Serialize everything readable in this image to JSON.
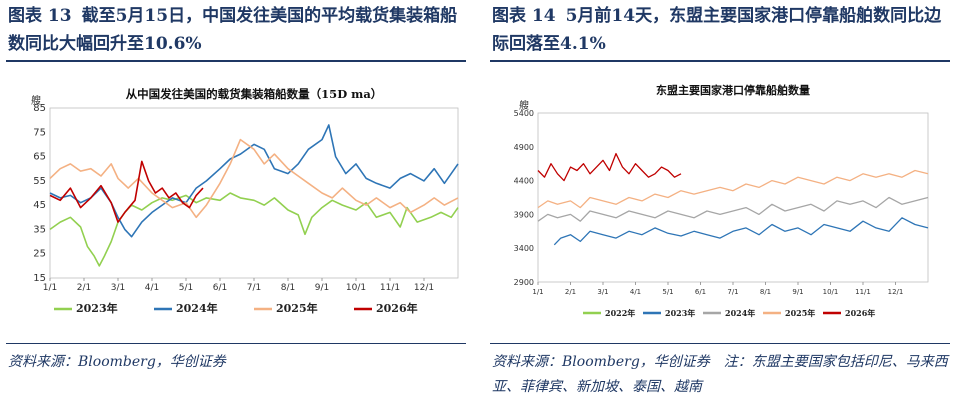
{
  "left": {
    "fig_label": "图表 13",
    "fig_title": "截至5月15日，中国发往美国的平均载货集装箱船数同比大幅回升至10.6%",
    "source": "资料来源：Bloomberg，华创证券",
    "chart_data": {
      "type": "line",
      "title": "从中国发往美国的载货集装箱船数量（15D ma）",
      "ylabel": "艘",
      "ylim": [
        15,
        85
      ],
      "yticks": [
        15,
        25,
        35,
        45,
        55,
        65,
        75,
        85
      ],
      "xticks": [
        "1/1",
        "2/1",
        "3/1",
        "4/1",
        "5/1",
        "6/1",
        "7/1",
        "8/1",
        "9/1",
        "10/1",
        "11/1",
        "12/1"
      ],
      "legend_position": "bottom",
      "series": [
        {
          "name": "2023年",
          "color": "#92d050",
          "points": [
            [
              0,
              35
            ],
            [
              0.3,
              38
            ],
            [
              0.6,
              40
            ],
            [
              0.9,
              36
            ],
            [
              1.1,
              28
            ],
            [
              1.3,
              24
            ],
            [
              1.45,
              20
            ],
            [
              1.6,
              24
            ],
            [
              1.8,
              30
            ],
            [
              2.0,
              38
            ],
            [
              2.2,
              42
            ],
            [
              2.4,
              45
            ],
            [
              2.7,
              43
            ],
            [
              3.0,
              46
            ],
            [
              3.3,
              48
            ],
            [
              3.6,
              47
            ],
            [
              4.0,
              49
            ],
            [
              4.3,
              46
            ],
            [
              4.6,
              48
            ],
            [
              5.0,
              47
            ],
            [
              5.3,
              50
            ],
            [
              5.6,
              48
            ],
            [
              6.0,
              47
            ],
            [
              6.3,
              45
            ],
            [
              6.6,
              48
            ],
            [
              7.0,
              43
            ],
            [
              7.3,
              41
            ],
            [
              7.5,
              33
            ],
            [
              7.7,
              40
            ],
            [
              8.0,
              44
            ],
            [
              8.3,
              47
            ],
            [
              8.6,
              45
            ],
            [
              9.0,
              43
            ],
            [
              9.3,
              46
            ],
            [
              9.6,
              40
            ],
            [
              10.0,
              42
            ],
            [
              10.3,
              36
            ],
            [
              10.5,
              44
            ],
            [
              10.8,
              38
            ],
            [
              11.2,
              40
            ],
            [
              11.5,
              42
            ],
            [
              11.8,
              40
            ],
            [
              12.0,
              44
            ]
          ]
        },
        {
          "name": "2024年",
          "color": "#2e75b6",
          "points": [
            [
              0,
              50
            ],
            [
              0.3,
              48
            ],
            [
              0.6,
              49
            ],
            [
              0.9,
              46
            ],
            [
              1.2,
              48
            ],
            [
              1.5,
              52
            ],
            [
              1.8,
              46
            ],
            [
              2.0,
              40
            ],
            [
              2.2,
              35
            ],
            [
              2.4,
              32
            ],
            [
              2.7,
              38
            ],
            [
              3.0,
              42
            ],
            [
              3.3,
              45
            ],
            [
              3.6,
              48
            ],
            [
              4.0,
              46
            ],
            [
              4.3,
              52
            ],
            [
              4.6,
              55
            ],
            [
              5.0,
              60
            ],
            [
              5.3,
              64
            ],
            [
              5.6,
              66
            ],
            [
              6.0,
              70
            ],
            [
              6.3,
              68
            ],
            [
              6.6,
              60
            ],
            [
              7.0,
              58
            ],
            [
              7.3,
              62
            ],
            [
              7.6,
              68
            ],
            [
              8.0,
              72
            ],
            [
              8.2,
              78
            ],
            [
              8.4,
              65
            ],
            [
              8.7,
              58
            ],
            [
              9.0,
              62
            ],
            [
              9.3,
              56
            ],
            [
              9.6,
              54
            ],
            [
              10.0,
              52
            ],
            [
              10.3,
              56
            ],
            [
              10.6,
              58
            ],
            [
              11.0,
              55
            ],
            [
              11.3,
              60
            ],
            [
              11.6,
              54
            ],
            [
              12.0,
              62
            ]
          ]
        },
        {
          "name": "2025年",
          "color": "#f4b183",
          "points": [
            [
              0,
              56
            ],
            [
              0.3,
              60
            ],
            [
              0.6,
              62
            ],
            [
              0.9,
              59
            ],
            [
              1.2,
              60
            ],
            [
              1.5,
              57
            ],
            [
              1.8,
              62
            ],
            [
              2.0,
              56
            ],
            [
              2.3,
              52
            ],
            [
              2.6,
              56
            ],
            [
              3.0,
              50
            ],
            [
              3.3,
              47
            ],
            [
              3.6,
              44
            ],
            [
              4.0,
              46
            ],
            [
              4.3,
              40
            ],
            [
              4.6,
              45
            ],
            [
              5.0,
              54
            ],
            [
              5.3,
              62
            ],
            [
              5.6,
              72
            ],
            [
              6.0,
              68
            ],
            [
              6.3,
              62
            ],
            [
              6.6,
              66
            ],
            [
              7.0,
              60
            ],
            [
              7.3,
              57
            ],
            [
              7.6,
              54
            ],
            [
              8.0,
              50
            ],
            [
              8.3,
              48
            ],
            [
              8.6,
              52
            ],
            [
              9.0,
              47
            ],
            [
              9.3,
              45
            ],
            [
              9.6,
              48
            ],
            [
              10.0,
              44
            ],
            [
              10.3,
              46
            ],
            [
              10.6,
              42
            ],
            [
              11.0,
              45
            ],
            [
              11.3,
              48
            ],
            [
              11.6,
              45
            ],
            [
              12.0,
              48
            ]
          ]
        },
        {
          "name": "2026年",
          "color": "#c00000",
          "points": [
            [
              0,
              49
            ],
            [
              0.3,
              47
            ],
            [
              0.6,
              52
            ],
            [
              0.9,
              44
            ],
            [
              1.2,
              48
            ],
            [
              1.5,
              53
            ],
            [
              1.8,
              46
            ],
            [
              2.0,
              38
            ],
            [
              2.2,
              42
            ],
            [
              2.5,
              47
            ],
            [
              2.7,
              63
            ],
            [
              2.9,
              55
            ],
            [
              3.1,
              50
            ],
            [
              3.3,
              52
            ],
            [
              3.5,
              48
            ],
            [
              3.7,
              50
            ],
            [
              3.9,
              46
            ],
            [
              4.1,
              44
            ],
            [
              4.3,
              49
            ],
            [
              4.5,
              52
            ]
          ]
        }
      ]
    }
  },
  "right": {
    "fig_label": "图表 14",
    "fig_title": "5月前14天，东盟主要国家港口停靠船舶数同比边际回落至4.1%",
    "source": "资料来源：Bloomberg，华创证券　注：东盟主要国家包括印尼、马来西亚、菲律宾、新加坡、泰国、越南",
    "chart_data": {
      "type": "line",
      "title": "东盟主要国家港口停靠船舶数量",
      "ylabel": "艘",
      "ylim": [
        2900,
        5400
      ],
      "yticks": [
        2900,
        3400,
        3900,
        4400,
        4900,
        5400
      ],
      "xticks": [
        "1/1",
        "2/1",
        "3/1",
        "4/1",
        "5/1",
        "6/1",
        "7/1",
        "8/1",
        "9/1",
        "10/1",
        "11/1",
        "12/1"
      ],
      "legend_position": "bottom",
      "series": [
        {
          "name": "2022年",
          "color": "#92d050",
          "points": []
        },
        {
          "name": "2023年",
          "color": "#2e75b6",
          "points": [
            [
              0.5,
              3450
            ],
            [
              0.7,
              3550
            ],
            [
              1.0,
              3600
            ],
            [
              1.3,
              3500
            ],
            [
              1.6,
              3650
            ],
            [
              2.0,
              3600
            ],
            [
              2.4,
              3550
            ],
            [
              2.8,
              3650
            ],
            [
              3.2,
              3600
            ],
            [
              3.6,
              3700
            ],
            [
              4.0,
              3620
            ],
            [
              4.4,
              3580
            ],
            [
              4.8,
              3650
            ],
            [
              5.2,
              3600
            ],
            [
              5.6,
              3550
            ],
            [
              6.0,
              3650
            ],
            [
              6.4,
              3700
            ],
            [
              6.8,
              3600
            ],
            [
              7.2,
              3750
            ],
            [
              7.6,
              3650
            ],
            [
              8.0,
              3700
            ],
            [
              8.4,
              3600
            ],
            [
              8.8,
              3750
            ],
            [
              9.2,
              3700
            ],
            [
              9.6,
              3650
            ],
            [
              10.0,
              3800
            ],
            [
              10.4,
              3700
            ],
            [
              10.8,
              3650
            ],
            [
              11.2,
              3850
            ],
            [
              11.6,
              3750
            ],
            [
              12.0,
              3700
            ]
          ]
        },
        {
          "name": "2024年",
          "color": "#a6a6a6",
          "points": [
            [
              0,
              3800
            ],
            [
              0.3,
              3900
            ],
            [
              0.6,
              3850
            ],
            [
              1.0,
              3900
            ],
            [
              1.3,
              3800
            ],
            [
              1.6,
              3950
            ],
            [
              2.0,
              3900
            ],
            [
              2.4,
              3850
            ],
            [
              2.8,
              3950
            ],
            [
              3.2,
              3900
            ],
            [
              3.6,
              3850
            ],
            [
              4.0,
              3950
            ],
            [
              4.4,
              3900
            ],
            [
              4.8,
              3850
            ],
            [
              5.2,
              3950
            ],
            [
              5.6,
              3900
            ],
            [
              6.0,
              3950
            ],
            [
              6.4,
              4000
            ],
            [
              6.8,
              3900
            ],
            [
              7.2,
              4050
            ],
            [
              7.6,
              3950
            ],
            [
              8.0,
              4000
            ],
            [
              8.4,
              4050
            ],
            [
              8.8,
              3950
            ],
            [
              9.2,
              4100
            ],
            [
              9.6,
              4050
            ],
            [
              10.0,
              4100
            ],
            [
              10.4,
              4000
            ],
            [
              10.8,
              4150
            ],
            [
              11.2,
              4050
            ],
            [
              11.6,
              4100
            ],
            [
              12.0,
              4150
            ]
          ]
        },
        {
          "name": "2025年",
          "color": "#f4b183",
          "points": [
            [
              0,
              4000
            ],
            [
              0.3,
              4100
            ],
            [
              0.6,
              4050
            ],
            [
              1.0,
              4100
            ],
            [
              1.3,
              4000
            ],
            [
              1.6,
              4150
            ],
            [
              2.0,
              4100
            ],
            [
              2.4,
              4050
            ],
            [
              2.8,
              4150
            ],
            [
              3.2,
              4100
            ],
            [
              3.6,
              4200
            ],
            [
              4.0,
              4150
            ],
            [
              4.4,
              4250
            ],
            [
              4.8,
              4200
            ],
            [
              5.2,
              4250
            ],
            [
              5.6,
              4300
            ],
            [
              6.0,
              4250
            ],
            [
              6.4,
              4350
            ],
            [
              6.8,
              4300
            ],
            [
              7.2,
              4400
            ],
            [
              7.6,
              4350
            ],
            [
              8.0,
              4450
            ],
            [
              8.4,
              4400
            ],
            [
              8.8,
              4350
            ],
            [
              9.2,
              4450
            ],
            [
              9.6,
              4400
            ],
            [
              10.0,
              4500
            ],
            [
              10.4,
              4450
            ],
            [
              10.8,
              4500
            ],
            [
              11.2,
              4450
            ],
            [
              11.6,
              4550
            ],
            [
              12.0,
              4500
            ]
          ]
        },
        {
          "name": "2026年",
          "color": "#c00000",
          "points": [
            [
              0,
              4550
            ],
            [
              0.2,
              4450
            ],
            [
              0.4,
              4650
            ],
            [
              0.6,
              4500
            ],
            [
              0.8,
              4400
            ],
            [
              1.0,
              4600
            ],
            [
              1.2,
              4550
            ],
            [
              1.4,
              4650
            ],
            [
              1.6,
              4500
            ],
            [
              1.8,
              4600
            ],
            [
              2.0,
              4700
            ],
            [
              2.2,
              4550
            ],
            [
              2.4,
              4800
            ],
            [
              2.6,
              4600
            ],
            [
              2.8,
              4500
            ],
            [
              3.0,
              4650
            ],
            [
              3.2,
              4550
            ],
            [
              3.4,
              4450
            ],
            [
              3.6,
              4500
            ],
            [
              3.8,
              4600
            ],
            [
              4.0,
              4550
            ],
            [
              4.2,
              4450
            ],
            [
              4.4,
              4500
            ]
          ]
        }
      ]
    }
  }
}
